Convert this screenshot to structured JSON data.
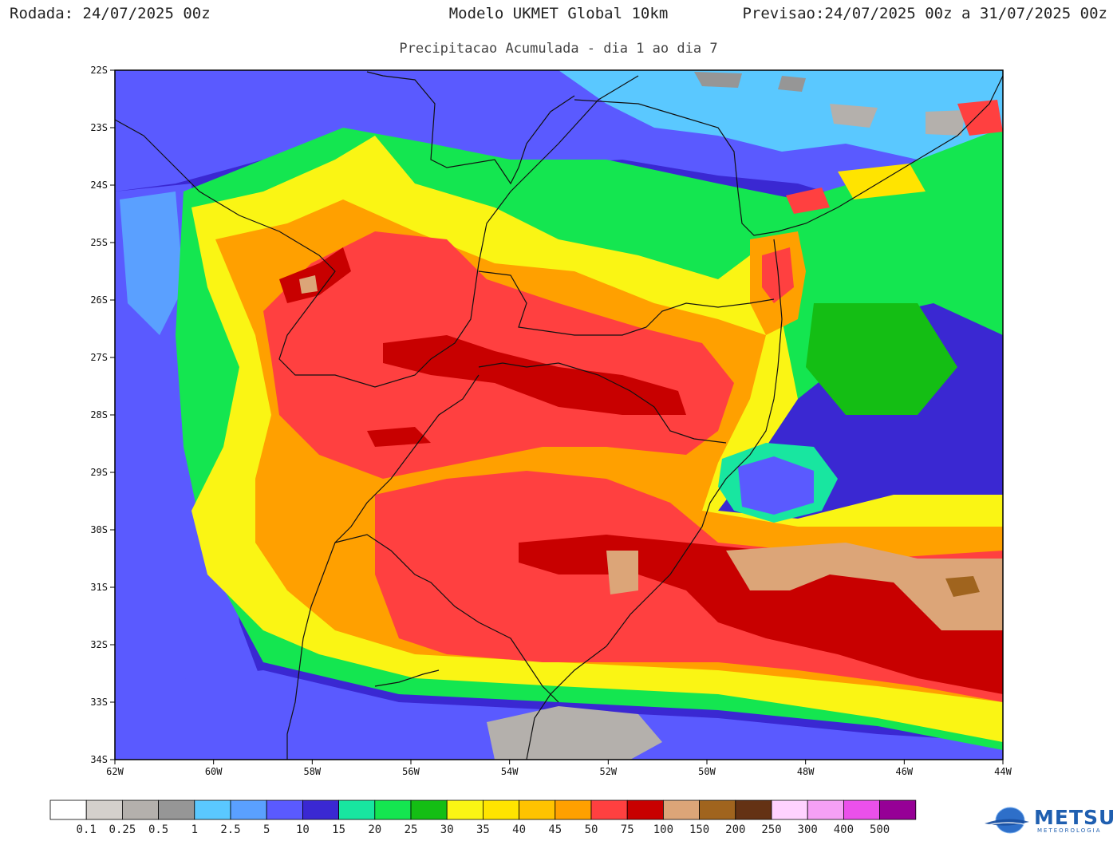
{
  "header": {
    "run_label": "Rodada:",
    "run_value": "24/07/2025 00z",
    "model": "Modelo UKMET Global 10km",
    "forecast_label": "Previsao:",
    "forecast_value": "24/07/2025 00z a 31/07/2025 00z"
  },
  "subtitle": "Precipitacao Acumulada - dia 1 ao dia 7",
  "lat_ticks": [
    "22S",
    "23S",
    "24S",
    "25S",
    "26S",
    "27S",
    "28S",
    "29S",
    "30S",
    "31S",
    "32S",
    "33S",
    "34S"
  ],
  "lon_ticks": [
    "62W",
    "60W",
    "58W",
    "56W",
    "54W",
    "52W",
    "50W",
    "48W",
    "46W",
    "44W"
  ],
  "colorbar": {
    "colors": [
      "#ffffff",
      "#d4d0cc",
      "#b4b0ac",
      "#969696",
      "#5ac8ff",
      "#5aa0ff",
      "#5a5aff",
      "#3a28d2",
      "#18e6a0",
      "#14e650",
      "#14be14",
      "#faf514",
      "#ffe400",
      "#ffc300",
      "#ffa000",
      "#ff4040",
      "#c80000",
      "#dca578",
      "#a0641e",
      "#643214",
      "#ffd2ff",
      "#f5a0f5",
      "#eb50eb",
      "#960096"
    ],
    "labels": [
      "0.1",
      "0.25",
      "0.5",
      "1",
      "2.5",
      "5",
      "10",
      "15",
      "20",
      "25",
      "30",
      "35",
      "40",
      "45",
      "50",
      "75",
      "100",
      "150",
      "200",
      "250",
      "300",
      "400",
      "500"
    ]
  },
  "logo": {
    "name": "METSUL",
    "tagline": "METEOROLOGIA"
  },
  "map_colors": {
    "gray": "#969696",
    "light_gray": "#b4b0ac",
    "cyan": "#5ac8ff",
    "light_blue": "#5aa0ff",
    "blue": "#5a5aff",
    "dark_blue": "#3a28d2",
    "teal": "#18e6a0",
    "green": "#14e650",
    "dark_green": "#14be14",
    "yellow": "#faf514",
    "gold": "#ffe400",
    "amber": "#ffc300",
    "orange": "#ffa000",
    "red": "#ff4040",
    "dark_red": "#c80000",
    "tan": "#dca578",
    "brown": "#a0641e"
  }
}
